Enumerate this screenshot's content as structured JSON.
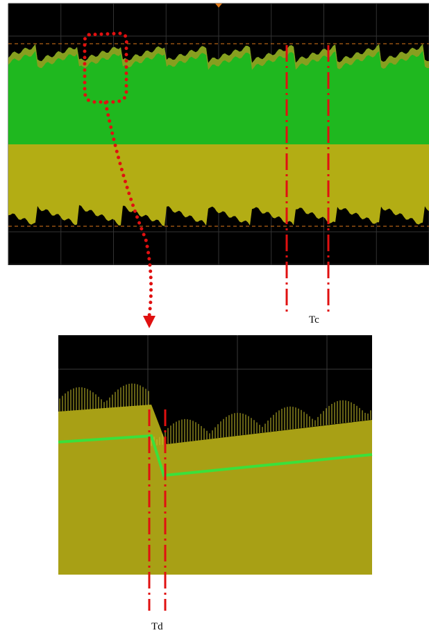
{
  "annotations": [
    "Tc",
    "Td"
  ]
}
